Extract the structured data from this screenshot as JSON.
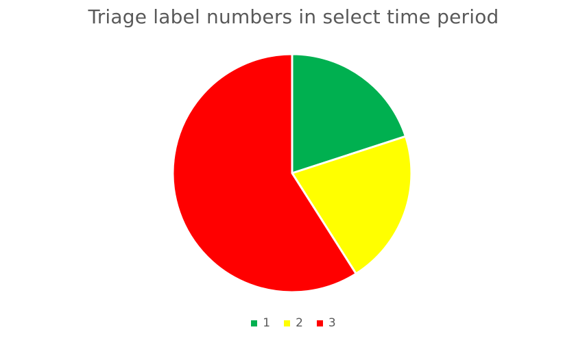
{
  "chart_data": {
    "type": "pie",
    "title": "Triage label numbers in select time period",
    "categories": [
      "1",
      "2",
      "3"
    ],
    "values": [
      20,
      21,
      59
    ],
    "colors": [
      "#00B050",
      "#FFFF00",
      "#FF0000"
    ],
    "slice_border_color": "#FFFFFF",
    "legend_position": "bottom",
    "start_angle_deg": 0,
    "direction": "clockwise"
  }
}
